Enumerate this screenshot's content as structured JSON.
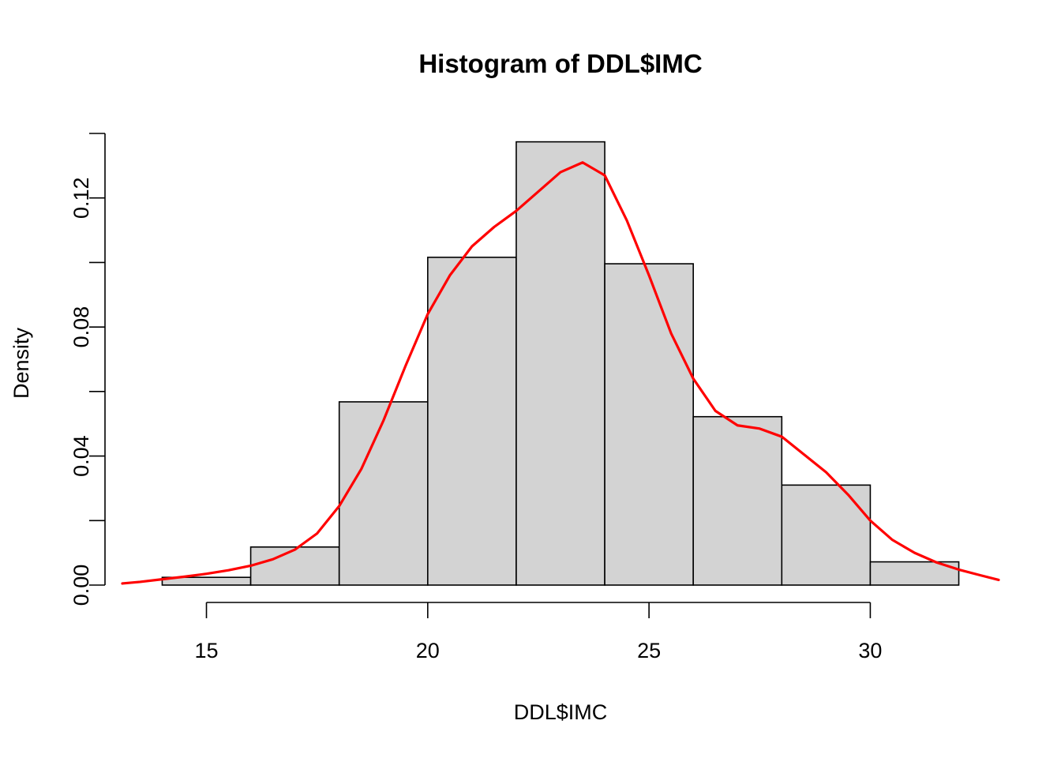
{
  "chart_data": {
    "type": "bar",
    "title": "Histogram of DDL$IMC",
    "xlabel": "DDL$IMC",
    "ylabel": "Density",
    "xlim": [
      13.1,
      32.9
    ],
    "ylim": [
      0,
      0.14
    ],
    "x_ticks": [
      15,
      20,
      25,
      30
    ],
    "x_tick_labels": [
      "15",
      "20",
      "25",
      "30"
    ],
    "y_ticks": [
      0,
      0.02,
      0.04,
      0.06,
      0.08,
      0.1,
      0.12,
      0.14
    ],
    "y_tick_labels": [
      "0.00",
      "",
      "0.04",
      "",
      "0.08",
      "",
      "0.12",
      ""
    ],
    "grid": false,
    "bins": [
      {
        "x0": 14,
        "x1": 16,
        "density": 0.0024
      },
      {
        "x0": 16,
        "x1": 18,
        "density": 0.0118
      },
      {
        "x0": 18,
        "x1": 20,
        "density": 0.0568
      },
      {
        "x0": 20,
        "x1": 22,
        "density": 0.1016
      },
      {
        "x0": 22,
        "x1": 24,
        "density": 0.1374
      },
      {
        "x0": 24,
        "x1": 26,
        "density": 0.0996
      },
      {
        "x0": 26,
        "x1": 28,
        "density": 0.0522
      },
      {
        "x0": 28,
        "x1": 30,
        "density": 0.031
      },
      {
        "x0": 30,
        "x1": 32,
        "density": 0.0072
      }
    ],
    "bar_color": "#d3d3d3",
    "density_curve": {
      "color": "#ff0000",
      "points": [
        [
          13.1,
          0.0005
        ],
        [
          13.5,
          0.001
        ],
        [
          14.0,
          0.0018
        ],
        [
          14.5,
          0.0026
        ],
        [
          15.0,
          0.0035
        ],
        [
          15.5,
          0.0046
        ],
        [
          16.0,
          0.006
        ],
        [
          16.5,
          0.008
        ],
        [
          17.0,
          0.011
        ],
        [
          17.5,
          0.016
        ],
        [
          18.0,
          0.0245
        ],
        [
          18.5,
          0.036
        ],
        [
          19.0,
          0.051
        ],
        [
          19.5,
          0.068
        ],
        [
          20.0,
          0.084
        ],
        [
          20.5,
          0.096
        ],
        [
          21.0,
          0.105
        ],
        [
          21.5,
          0.111
        ],
        [
          22.0,
          0.116
        ],
        [
          22.5,
          0.122
        ],
        [
          23.0,
          0.128
        ],
        [
          23.5,
          0.131
        ],
        [
          24.0,
          0.127
        ],
        [
          24.5,
          0.113
        ],
        [
          25.0,
          0.096
        ],
        [
          25.5,
          0.078
        ],
        [
          26.0,
          0.064
        ],
        [
          26.5,
          0.054
        ],
        [
          27.0,
          0.0495
        ],
        [
          27.5,
          0.0485
        ],
        [
          28.0,
          0.046
        ],
        [
          28.5,
          0.0405
        ],
        [
          29.0,
          0.035
        ],
        [
          29.5,
          0.028
        ],
        [
          30.0,
          0.02
        ],
        [
          30.5,
          0.014
        ],
        [
          31.0,
          0.01
        ],
        [
          31.5,
          0.007
        ],
        [
          32.0,
          0.0048
        ],
        [
          32.5,
          0.003
        ],
        [
          32.9,
          0.0016
        ]
      ]
    }
  }
}
